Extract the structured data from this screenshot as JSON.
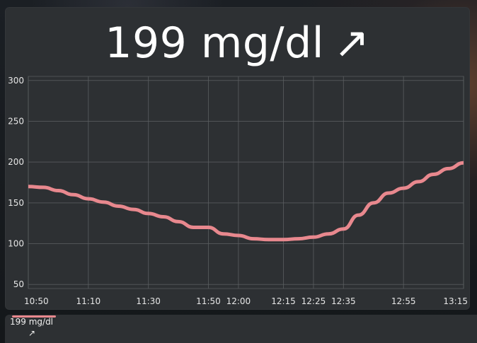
{
  "header": {
    "value": "199 mg/dl",
    "trend_arrow": "↗"
  },
  "tray": {
    "label": "199 mg/dl",
    "arrow": "↗"
  },
  "colors": {
    "line": "#e8888e",
    "background": "#2d3033",
    "grid": "#5b5e61",
    "text": "#ffffff"
  },
  "chart_data": {
    "type": "line",
    "grid": true,
    "ylim": [
      45,
      305
    ],
    "yticks": [
      "300",
      "250",
      "200",
      "150",
      "100",
      "50"
    ],
    "ytick_values": [
      300,
      250,
      200,
      150,
      100,
      50
    ],
    "xlim": [
      "10:50",
      "13:15"
    ],
    "xtick_labels": [
      "10:50",
      "11:10",
      "11:30",
      "11:50",
      "12:00",
      "12:15",
      "12:25",
      "12:35",
      "12:55",
      "13:15"
    ],
    "series": [
      {
        "x": [
          "10:50",
          "10:55",
          "11:00",
          "11:05",
          "11:10",
          "11:15",
          "11:20",
          "11:25",
          "11:30",
          "11:35",
          "11:40",
          "11:45",
          "11:50",
          "11:55",
          "12:00",
          "12:05",
          "12:10",
          "12:15",
          "12:20",
          "12:25",
          "12:30",
          "12:35",
          "12:40",
          "12:45",
          "12:50",
          "12:55",
          "13:00",
          "13:05",
          "13:10",
          "13:15"
        ],
        "values": [
          170,
          169,
          165,
          160,
          155,
          151,
          146,
          142,
          137,
          133,
          127,
          120,
          120,
          112,
          110,
          106,
          105,
          105,
          106,
          108,
          112,
          118,
          135,
          150,
          162,
          168,
          176,
          185,
          192,
          199
        ]
      }
    ]
  }
}
